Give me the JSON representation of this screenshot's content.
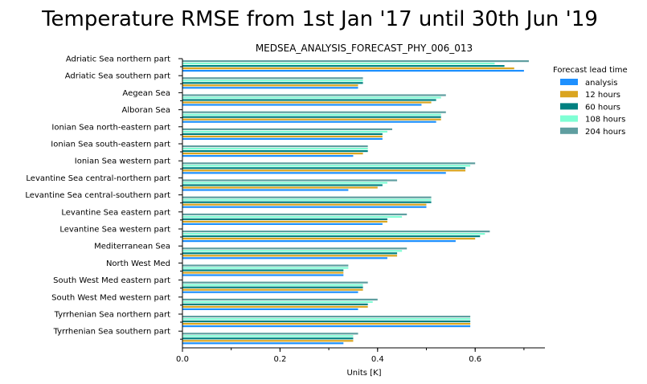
{
  "chart_data": {
    "type": "bar",
    "orientation": "horizontal",
    "title": "Temperature RMSE from 1st Jan '17 until 30th Jun '19",
    "subtitle": "MEDSEA_ANALYSIS_FORECAST_PHY_006_013",
    "xlabel": "Units [K]",
    "xlim": [
      0,
      0.74
    ],
    "xticks": [
      "0.0",
      "0.2",
      "0.4",
      "0.6"
    ],
    "legend_title": "Forecast lead time",
    "legend_position": "right",
    "grid": false,
    "categories": [
      "Adriatic Sea northern part",
      "Adriatic Sea southern part",
      "Aegean Sea",
      "Alboran Sea",
      "Ionian Sea north-eastern part",
      "Ionian Sea south-eastern part",
      "Ionian Sea western part",
      "Levantine Sea central-northern part",
      "Levantine Sea central-southern part",
      "Levantine Sea eastern part",
      "Levantine Sea western part",
      "Mediterranean Sea",
      "North West Med",
      "South West Med eastern part",
      "South West Med western part",
      "Tyrrhenian Sea northern part",
      "Tyrrhenian Sea southern part"
    ],
    "series": [
      {
        "name": "analysis",
        "color": "#1e90ff",
        "values": [
          0.7,
          0.36,
          0.49,
          0.52,
          0.41,
          0.35,
          0.54,
          0.34,
          0.5,
          0.41,
          0.56,
          0.42,
          0.33,
          0.36,
          0.36,
          0.59,
          0.33
        ]
      },
      {
        "name": "12 hours",
        "color": "#daa520",
        "values": [
          0.68,
          0.36,
          0.51,
          0.53,
          0.41,
          0.37,
          0.58,
          0.4,
          0.5,
          0.42,
          0.6,
          0.44,
          0.33,
          0.37,
          0.38,
          0.59,
          0.35
        ]
      },
      {
        "name": "60 hours",
        "color": "#008080",
        "values": [
          0.66,
          0.37,
          0.52,
          0.53,
          0.41,
          0.38,
          0.58,
          0.41,
          0.51,
          0.42,
          0.61,
          0.44,
          0.33,
          0.37,
          0.38,
          0.59,
          0.35
        ]
      },
      {
        "name": "108 hours",
        "color": "#7fffd4",
        "values": [
          0.64,
          0.37,
          0.53,
          0.53,
          0.42,
          0.38,
          0.59,
          0.42,
          0.51,
          0.45,
          0.62,
          0.45,
          0.34,
          0.37,
          0.39,
          0.59,
          0.35
        ]
      },
      {
        "name": "204 hours",
        "color": "#5f9ea0",
        "values": [
          0.71,
          0.37,
          0.54,
          0.54,
          0.43,
          0.38,
          0.6,
          0.44,
          0.51,
          0.46,
          0.63,
          0.46,
          0.34,
          0.38,
          0.4,
          0.59,
          0.36
        ]
      }
    ]
  }
}
